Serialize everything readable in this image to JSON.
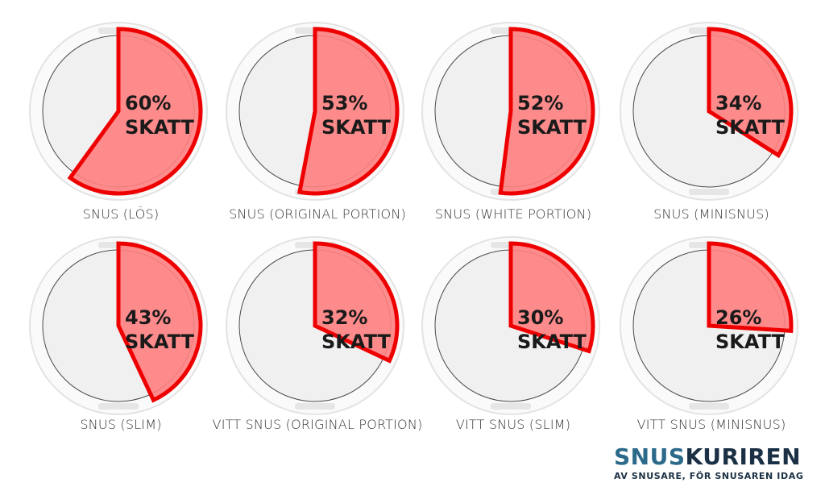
{
  "chart_data": {
    "type": "pie",
    "colors": {
      "slice_fill": "#ff8080",
      "slice_stroke": "#ee0000",
      "lid": "#f0f0f0",
      "rim": "#fafafa",
      "label_text": "#1a1a1a",
      "brand_dark": "#1b3045",
      "brand_accent": "#2c6a8a"
    },
    "charts": [
      {
        "category": "SNUS (LÖS)",
        "value": 60,
        "percent_label": "60%",
        "tax_label": "SKATT"
      },
      {
        "category": "SNUS (ORIGINAL PORTION)",
        "value": 53,
        "percent_label": "53%",
        "tax_label": "SKATT"
      },
      {
        "category": "SNUS (WHITE PORTION)",
        "value": 52,
        "percent_label": "52%",
        "tax_label": "SKATT"
      },
      {
        "category": "SNUS (MINISNUS)",
        "value": 34,
        "percent_label": "34%",
        "tax_label": "SKATT"
      },
      {
        "category": "SNUS (SLIM)",
        "value": 43,
        "percent_label": "43%",
        "tax_label": "SKATT"
      },
      {
        "category": "VITT SNUS (ORIGINAL PORTION)",
        "value": 32,
        "percent_label": "32%",
        "tax_label": "SKATT"
      },
      {
        "category": "VITT SNUS (SLIM)",
        "value": 30,
        "percent_label": "30%",
        "tax_label": "SKATT"
      },
      {
        "category": "VITT SNUS (MINISNUS)",
        "value": 26,
        "percent_label": "26%",
        "tax_label": "SKATT"
      }
    ]
  },
  "brand": {
    "name_part1": "SNUS",
    "name_part2": "KURIREN",
    "tagline": "AV SNUSARE, FÖR SNUSAREN IDAG"
  }
}
